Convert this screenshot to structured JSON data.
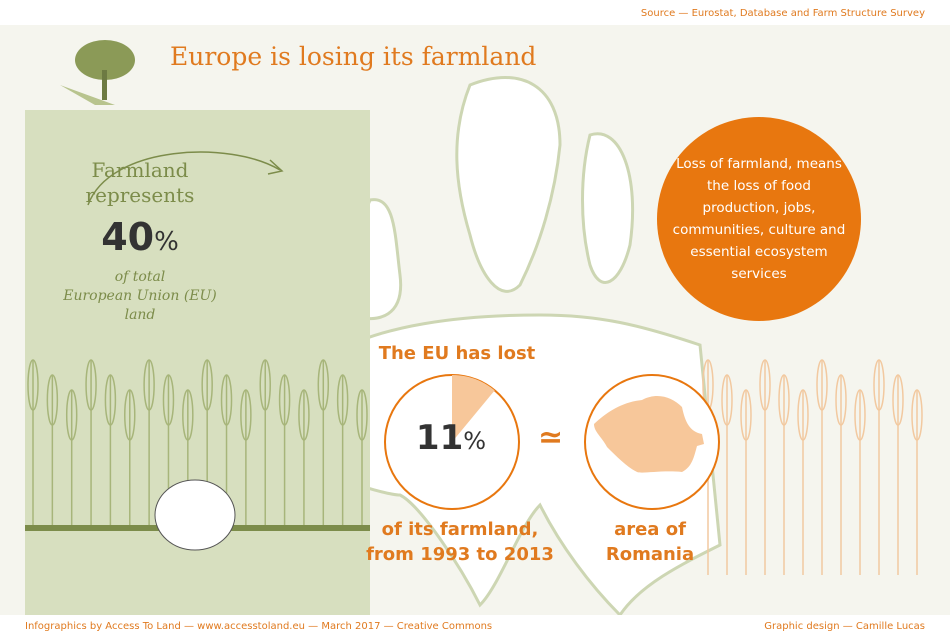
{
  "header": {
    "source": "Source — Eurostat, Database and Farm Structure Survey",
    "title": "Europe is losing its farmland"
  },
  "farmland": {
    "line1": "Farmland",
    "line2": "represents",
    "value": "40",
    "unit": "%",
    "desc1": "of total",
    "desc2": "European Union (EU)",
    "desc3": "land"
  },
  "loss_message": "Loss of farmland, means the loss of food production, jobs, communities, culture and essential ecosystem services",
  "lost": {
    "heading": "The EU has lost",
    "value": "11",
    "unit": "%",
    "fraction": 0.11,
    "line1": "of its farmland,",
    "line2": "from 1993 to 2013"
  },
  "compare": {
    "symbol": "≃",
    "line1": "area of",
    "line2": "Romania"
  },
  "footer": {
    "credits": "Infographics  by Access To Land — www.accesstoland.eu — March 2017 — Creative Commons",
    "design": "Graphic design — Camille Lucas"
  },
  "colors": {
    "orange": "#e8770f",
    "peach": "#f7c79a",
    "green": "#d7dfbf",
    "olive": "#7c8c4a"
  }
}
